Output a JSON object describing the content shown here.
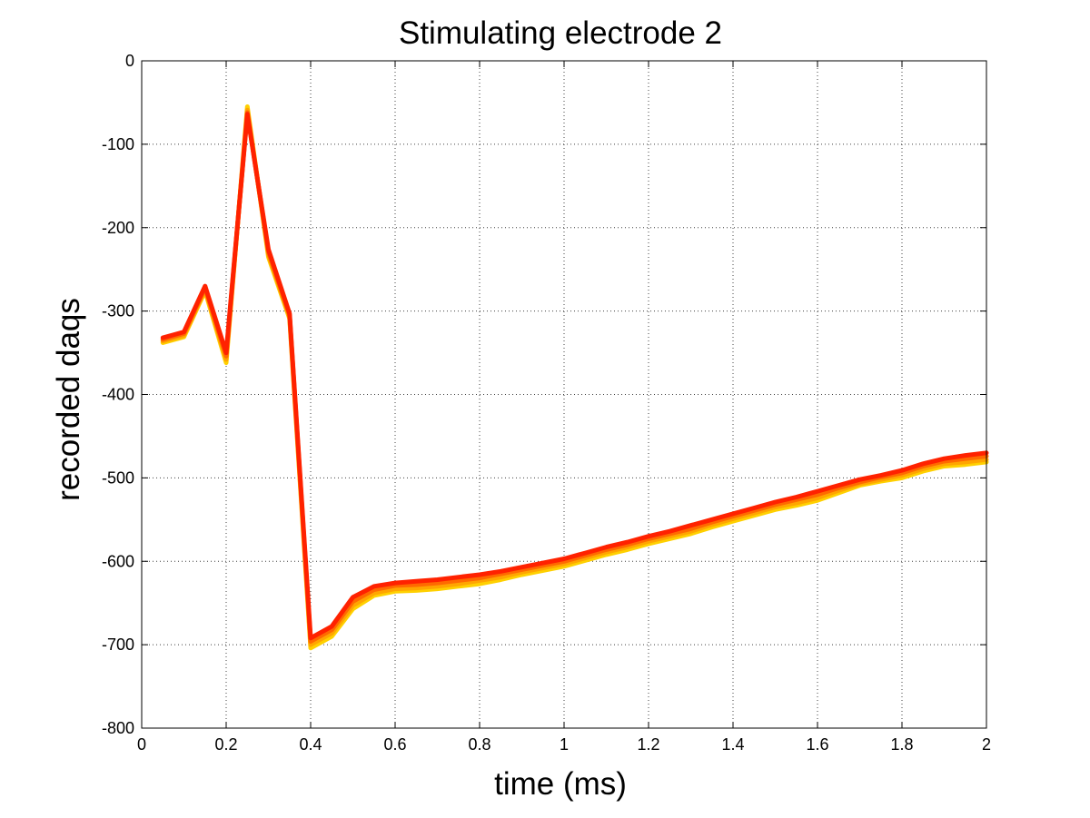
{
  "chart_data": {
    "type": "line",
    "title": "Stimulating electrode 2",
    "xlabel": "time (ms)",
    "ylabel": "recorded daqs",
    "xlim": [
      0,
      2
    ],
    "ylim": [
      -800,
      0
    ],
    "xticks": [
      0,
      0.2,
      0.4,
      0.6,
      0.8,
      1,
      1.2,
      1.4,
      1.6,
      1.8,
      2
    ],
    "xtick_labels": [
      "0",
      "0.2",
      "0.4",
      "0.6",
      "0.8",
      "1",
      "1.2",
      "1.4",
      "1.6",
      "1.8",
      "2"
    ],
    "yticks": [
      0,
      -100,
      -200,
      -300,
      -400,
      -500,
      -600,
      -700,
      -800
    ],
    "ytick_labels": [
      "0",
      "-100",
      "-200",
      "-300",
      "-400",
      "-500",
      "-600",
      "-700",
      "-800"
    ],
    "grid": true,
    "legend": "none",
    "x": [
      0.05,
      0.1,
      0.15,
      0.2,
      0.25,
      0.3,
      0.35,
      0.4,
      0.45,
      0.5,
      0.55,
      0.6,
      0.65,
      0.7,
      0.75,
      0.8,
      0.85,
      0.9,
      0.95,
      1.0,
      1.05,
      1.1,
      1.15,
      1.2,
      1.25,
      1.3,
      1.35,
      1.4,
      1.45,
      1.5,
      1.55,
      1.6,
      1.65,
      1.7,
      1.75,
      1.8,
      1.85,
      1.9,
      1.95,
      2.0
    ],
    "series": [
      {
        "color": "#ffd000",
        "values": [
          -338,
          -331,
          -276,
          -362,
          -55,
          -235,
          -309,
          -704,
          -690,
          -657,
          -641,
          -636,
          -635,
          -633,
          -630,
          -627,
          -622,
          -616,
          -611,
          -606,
          -599,
          -592,
          -586,
          -579,
          -573,
          -567,
          -559,
          -552,
          -545,
          -538,
          -533,
          -527,
          -518,
          -509,
          -504,
          -500,
          -492,
          -486,
          -484,
          -481
        ]
      },
      {
        "color": "#ffa500",
        "values": [
          -336,
          -329,
          -274,
          -358,
          -59,
          -232,
          -307,
          -700,
          -686,
          -653,
          -638,
          -633,
          -632,
          -630,
          -627,
          -623,
          -619,
          -613,
          -608,
          -603,
          -596,
          -589,
          -583,
          -576,
          -570,
          -564,
          -556,
          -549,
          -542,
          -535,
          -530,
          -524,
          -515,
          -507,
          -502,
          -497,
          -489,
          -483,
          -481,
          -478
        ]
      },
      {
        "color": "#ff6a00",
        "values": [
          -334,
          -327,
          -272,
          -354,
          -62,
          -229,
          -305,
          -696,
          -682,
          -648,
          -634,
          -629,
          -628,
          -626,
          -623,
          -620,
          -615,
          -610,
          -605,
          -600,
          -593,
          -586,
          -580,
          -573,
          -567,
          -561,
          -553,
          -546,
          -539,
          -532,
          -526,
          -520,
          -512,
          -505,
          -499,
          -494,
          -486,
          -480,
          -477,
          -474
        ]
      },
      {
        "color": "#ff2200",
        "values": [
          -332,
          -325,
          -270,
          -350,
          -64,
          -226,
          -303,
          -692,
          -678,
          -643,
          -630,
          -626,
          -624,
          -622,
          -619,
          -616,
          -612,
          -607,
          -602,
          -597,
          -590,
          -583,
          -577,
          -570,
          -564,
          -557,
          -550,
          -543,
          -536,
          -529,
          -523,
          -516,
          -509,
          -502,
          -497,
          -491,
          -483,
          -477,
          -473,
          -470
        ]
      }
    ]
  }
}
